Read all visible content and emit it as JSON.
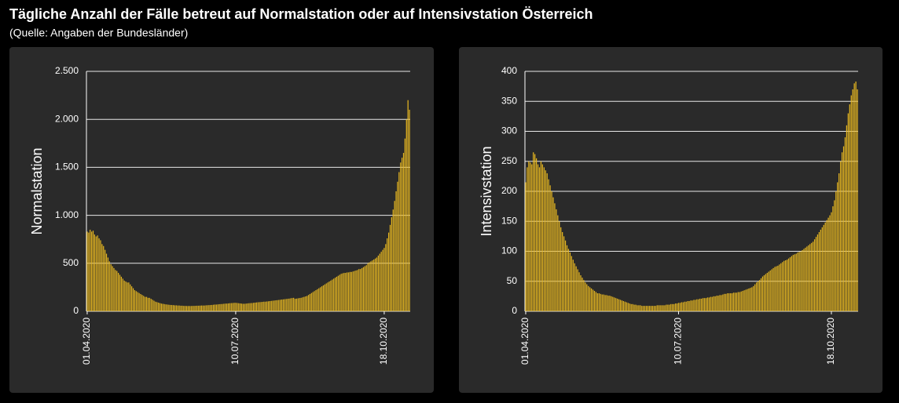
{
  "title": "Tägliche Anzahl der Fälle betreut auf Normalstation oder auf Intensivstation Österreich",
  "subtitle": "(Quelle: Angaben der Bundesländer)",
  "chart_data": [
    {
      "type": "bar",
      "y_label": "Normalstation",
      "color": "#e8b820",
      "grid": true,
      "ylim": [
        0,
        2500
      ],
      "yticks": [
        0,
        500,
        {
          "value": 1000,
          "label": "1.000"
        },
        {
          "value": 1500,
          "label": "1.500"
        },
        {
          "value": 2000,
          "label": "2.000"
        },
        {
          "value": 2500,
          "label": "2.500"
        }
      ],
      "categories": [
        "01.04.2020",
        null,
        null,
        null,
        null,
        null,
        null,
        null,
        null,
        null,
        null,
        null,
        null,
        null,
        null,
        null,
        null,
        null,
        null,
        null,
        null,
        null,
        null,
        null,
        null,
        null,
        null,
        null,
        null,
        null,
        null,
        null,
        null,
        null,
        null,
        null,
        null,
        null,
        null,
        null,
        null,
        null,
        null,
        null,
        null,
        null,
        null,
        null,
        null,
        null,
        null,
        null,
        null,
        null,
        null,
        null,
        null,
        null,
        null,
        null,
        null,
        null,
        null,
        null,
        null,
        null,
        null,
        null,
        null,
        null,
        null,
        null,
        null,
        null,
        null,
        null,
        null,
        null,
        null,
        null,
        null,
        null,
        null,
        null,
        null,
        null,
        null,
        null,
        null,
        null,
        null,
        null,
        null,
        null,
        null,
        null,
        null,
        null,
        null,
        null,
        "10.07.2020",
        null,
        null,
        null,
        null,
        null,
        null,
        null,
        null,
        null,
        null,
        null,
        null,
        null,
        null,
        null,
        null,
        null,
        null,
        null,
        null,
        null,
        null,
        null,
        null,
        null,
        null,
        null,
        null,
        null,
        null,
        null,
        null,
        null,
        null,
        null,
        null,
        null,
        null,
        null,
        null,
        null,
        null,
        null,
        null,
        null,
        null,
        null,
        null,
        null,
        null,
        null,
        null,
        null,
        null,
        null,
        null,
        null,
        null,
        null,
        null,
        null,
        null,
        null,
        null,
        null,
        null,
        null,
        null,
        null,
        null,
        null,
        null,
        null,
        null,
        null,
        null,
        null,
        null,
        null,
        null,
        null,
        null,
        null,
        null,
        null,
        null,
        null,
        null,
        null,
        null,
        null,
        null,
        null,
        null,
        null,
        null,
        null,
        null,
        null,
        "18.10.2020",
        null,
        null,
        null,
        null,
        null,
        null,
        null,
        null,
        null,
        null,
        null,
        null,
        null,
        null,
        null,
        null,
        null
      ],
      "values": [
        830,
        820,
        850,
        830,
        840,
        800,
        780,
        790,
        760,
        740,
        700,
        680,
        640,
        600,
        560,
        520,
        490,
        470,
        450,
        430,
        420,
        400,
        380,
        360,
        340,
        320,
        310,
        300,
        300,
        280,
        260,
        240,
        220,
        210,
        200,
        190,
        180,
        170,
        160,
        150,
        150,
        140,
        140,
        130,
        120,
        110,
        100,
        95,
        90,
        85,
        80,
        78,
        75,
        72,
        70,
        68,
        66,
        65,
        64,
        62,
        62,
        60,
        60,
        58,
        58,
        56,
        56,
        55,
        55,
        55,
        55,
        56,
        56,
        57,
        58,
        58,
        59,
        60,
        60,
        60,
        62,
        63,
        64,
        65,
        66,
        68,
        70,
        70,
        72,
        74,
        75,
        76,
        78,
        80,
        80,
        82,
        84,
        85,
        86,
        88,
        88,
        86,
        84,
        82,
        80,
        78,
        78,
        80,
        82,
        84,
        85,
        86,
        88,
        90,
        92,
        94,
        95,
        96,
        98,
        100,
        100,
        102,
        104,
        106,
        108,
        110,
        112,
        114,
        116,
        118,
        120,
        122,
        124,
        126,
        128,
        130,
        132,
        135,
        138,
        140,
        130,
        132,
        135,
        138,
        140,
        145,
        150,
        155,
        160,
        170,
        180,
        190,
        200,
        210,
        220,
        230,
        240,
        250,
        260,
        270,
        280,
        290,
        300,
        310,
        320,
        330,
        340,
        350,
        360,
        370,
        380,
        390,
        395,
        400,
        400,
        405,
        405,
        410,
        410,
        415,
        420,
        425,
        430,
        440,
        440,
        450,
        460,
        470,
        480,
        500,
        510,
        520,
        530,
        540,
        550,
        560,
        580,
        600,
        620,
        640,
        660,
        700,
        760,
        820,
        900,
        980,
        1060,
        1150,
        1250,
        1350,
        1450,
        1550,
        1600,
        1650,
        1800,
        2000,
        2200,
        2100
      ]
    },
    {
      "type": "bar",
      "y_label": "Intensivstation",
      "color": "#e8b820",
      "grid": true,
      "ylim": [
        0,
        400
      ],
      "yticks": [
        0,
        50,
        100,
        150,
        200,
        250,
        300,
        350,
        400
      ],
      "categories": [
        "01.04.2020",
        null,
        null,
        null,
        null,
        null,
        null,
        null,
        null,
        null,
        null,
        null,
        null,
        null,
        null,
        null,
        null,
        null,
        null,
        null,
        null,
        null,
        null,
        null,
        null,
        null,
        null,
        null,
        null,
        null,
        null,
        null,
        null,
        null,
        null,
        null,
        null,
        null,
        null,
        null,
        null,
        null,
        null,
        null,
        null,
        null,
        null,
        null,
        null,
        null,
        null,
        null,
        null,
        null,
        null,
        null,
        null,
        null,
        null,
        null,
        null,
        null,
        null,
        null,
        null,
        null,
        null,
        null,
        null,
        null,
        null,
        null,
        null,
        null,
        null,
        null,
        null,
        null,
        null,
        null,
        null,
        null,
        null,
        null,
        null,
        null,
        null,
        null,
        null,
        null,
        null,
        null,
        null,
        null,
        null,
        null,
        null,
        null,
        null,
        null,
        "10.07.2020",
        null,
        null,
        null,
        null,
        null,
        null,
        null,
        null,
        null,
        null,
        null,
        null,
        null,
        null,
        null,
        null,
        null,
        null,
        null,
        null,
        null,
        null,
        null,
        null,
        null,
        null,
        null,
        null,
        null,
        null,
        null,
        null,
        null,
        null,
        null,
        null,
        null,
        null,
        null,
        null,
        null,
        null,
        null,
        null,
        null,
        null,
        null,
        null,
        null,
        null,
        null,
        null,
        null,
        null,
        null,
        null,
        null,
        null,
        null,
        null,
        null,
        null,
        null,
        null,
        null,
        null,
        null,
        null,
        null,
        null,
        null,
        null,
        null,
        null,
        null,
        null,
        null,
        null,
        null,
        null,
        null,
        null,
        null,
        null,
        null,
        null,
        null,
        null,
        null,
        null,
        null,
        null,
        null,
        null,
        null,
        null,
        null,
        null,
        null,
        "18.10.2020",
        null,
        null,
        null,
        null,
        null,
        null,
        null,
        null,
        null,
        null,
        null,
        null,
        null,
        null,
        null,
        null,
        null
      ],
      "values": [
        215,
        240,
        250,
        248,
        245,
        265,
        262,
        255,
        245,
        240,
        250,
        245,
        240,
        235,
        230,
        220,
        210,
        200,
        190,
        180,
        170,
        160,
        150,
        140,
        132,
        125,
        118,
        110,
        104,
        98,
        92,
        86,
        80,
        75,
        70,
        65,
        60,
        56,
        52,
        48,
        45,
        42,
        40,
        38,
        36,
        34,
        32,
        30,
        30,
        29,
        28,
        28,
        27,
        27,
        26,
        26,
        25,
        24,
        23,
        22,
        21,
        20,
        19,
        18,
        17,
        16,
        15,
        14,
        13,
        12,
        12,
        11,
        11,
        10,
        10,
        10,
        9,
        9,
        9,
        9,
        9,
        9,
        9,
        9,
        9,
        9,
        10,
        10,
        10,
        10,
        10,
        10,
        11,
        11,
        11,
        12,
        12,
        12,
        13,
        13,
        14,
        14,
        15,
        15,
        16,
        16,
        17,
        17,
        18,
        18,
        19,
        19,
        20,
        20,
        21,
        21,
        22,
        22,
        22,
        23,
        23,
        24,
        24,
        25,
        25,
        26,
        26,
        27,
        27,
        28,
        29,
        29,
        30,
        30,
        30,
        30,
        31,
        31,
        31,
        32,
        32,
        33,
        34,
        35,
        36,
        37,
        38,
        39,
        40,
        42,
        45,
        48,
        50,
        52,
        55,
        58,
        60,
        62,
        64,
        66,
        68,
        70,
        72,
        74,
        75,
        76,
        78,
        80,
        82,
        84,
        85,
        86,
        88,
        90,
        92,
        94,
        95,
        96,
        98,
        99,
        100,
        102,
        104,
        106,
        108,
        110,
        112,
        114,
        116,
        120,
        124,
        128,
        132,
        136,
        140,
        144,
        148,
        152,
        156,
        160,
        165,
        175,
        185,
        200,
        215,
        230,
        250,
        265,
        275,
        290,
        310,
        330,
        345,
        360,
        370,
        380,
        383,
        370
      ]
    }
  ]
}
